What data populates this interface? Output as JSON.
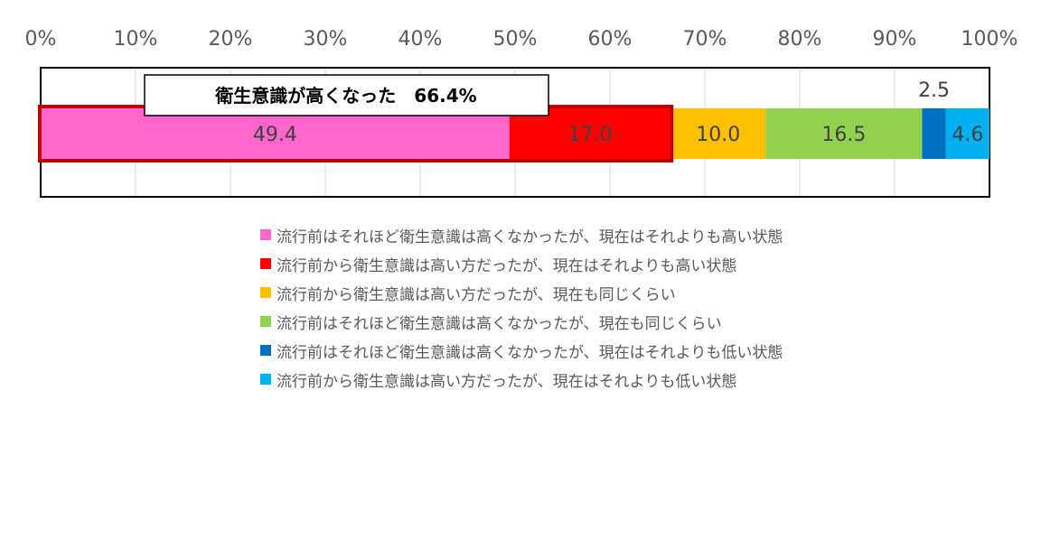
{
  "chart_data": {
    "type": "bar",
    "orientation": "horizontal",
    "stacked": true,
    "title": "",
    "xlabel": "",
    "ylabel": "",
    "xlim": [
      0,
      100
    ],
    "x_ticks": [
      "0%",
      "10%",
      "20%",
      "30%",
      "40%",
      "50%",
      "60%",
      "70%",
      "80%",
      "90%",
      "100%"
    ],
    "grid": true,
    "legend_position": "bottom",
    "series": [
      {
        "name": "流行前はそれほど衛生意識は高くなかったが、現在はそれよりも高い状態",
        "value": 49.4,
        "label": "49.4",
        "color": "#ff66cc"
      },
      {
        "name": "流行前から衛生意識は高い方だったが、現在はそれよりも高い状態",
        "value": 17.0,
        "label": "17.0",
        "color": "#ff0000"
      },
      {
        "name": "流行前から衛生意識は高い方だったが、現在も同じくらい",
        "value": 10.0,
        "label": "10.0",
        "color": "#ffc000"
      },
      {
        "name": "流行前はそれほど衛生意識は高くなかったが、現在も同じくらい",
        "value": 16.5,
        "label": "16.5",
        "color": "#92d050"
      },
      {
        "name": "流行前はそれほど衛生意識は高くなかったが、現在はそれよりも低い状態",
        "value": 2.5,
        "label": "2.5",
        "color": "#0070c0"
      },
      {
        "name": "流行前から衛生意識は高い方だったが、現在はそれよりも低い状態",
        "value": 4.6,
        "label": "4.6",
        "color": "#00b0f0"
      }
    ],
    "annotation": {
      "text": "衛生意識が高くなった　66.4%",
      "value": 66.4,
      "highlight_color": "#c00000"
    }
  }
}
